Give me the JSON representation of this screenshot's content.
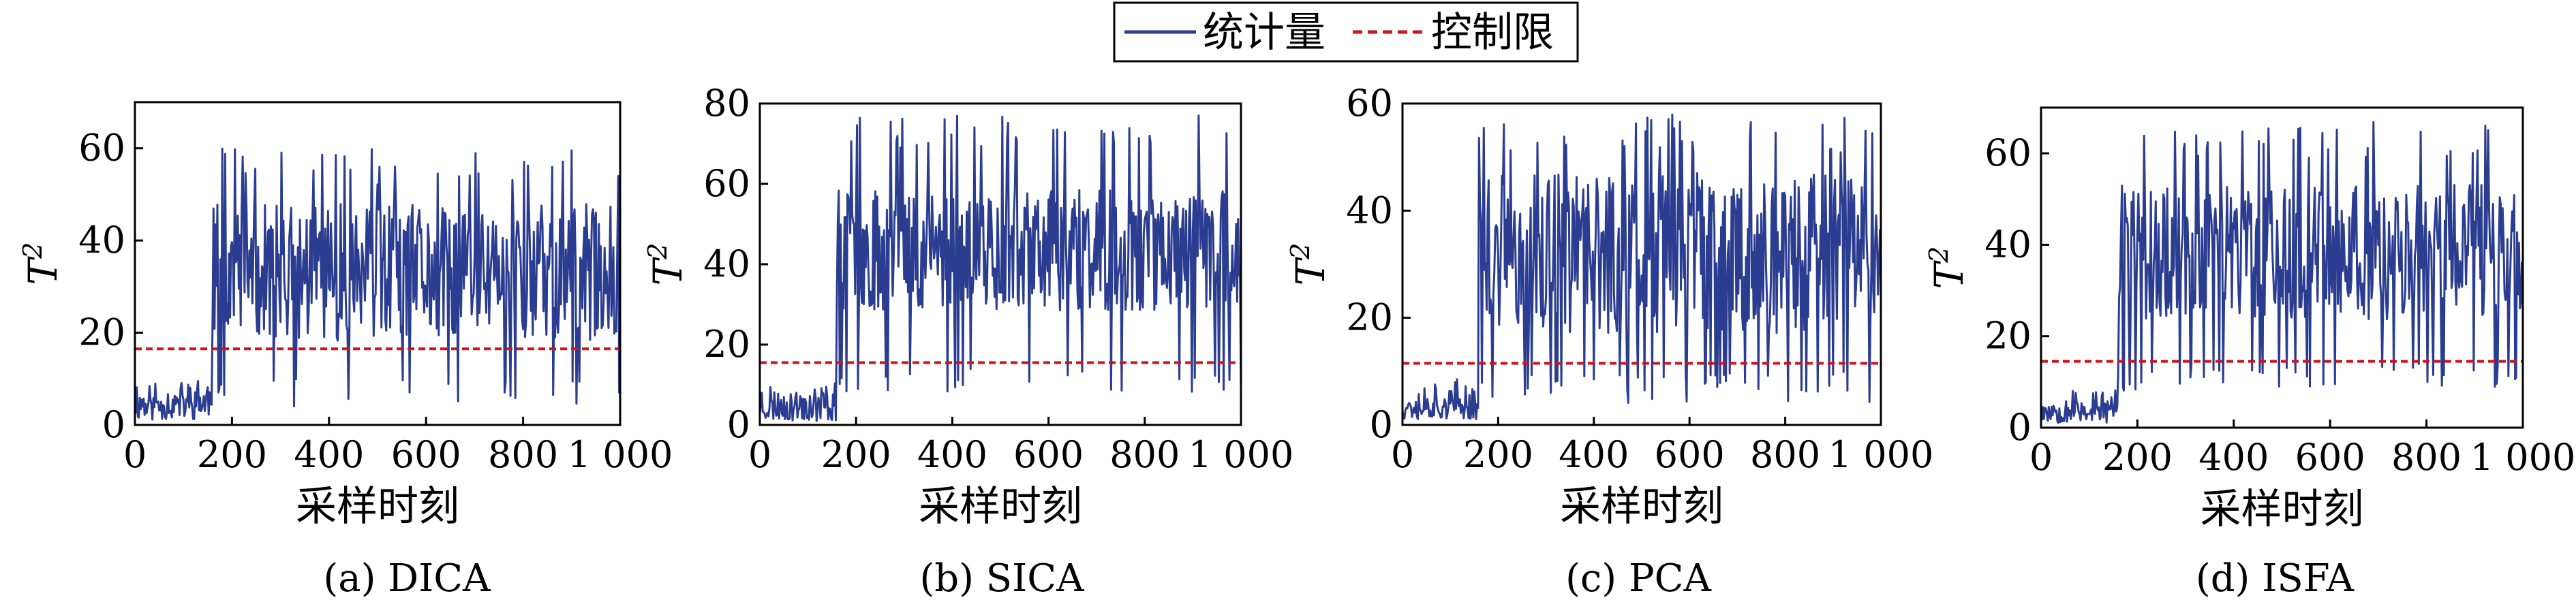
{
  "legend": {
    "statistic": "统计量",
    "limit": "控制限"
  },
  "colors": {
    "statistic": "#2b3d91",
    "limit": "#d0121b",
    "axis": "#000000"
  },
  "chart_data": [
    {
      "type": "line",
      "caption": "(a) DICA",
      "xlabel": "采样时刻",
      "ylabel": "T",
      "ylabel_sup": "2",
      "xlim": [
        0,
        1000
      ],
      "ylim": [
        0,
        70
      ],
      "yticks": [
        0,
        20,
        40,
        60
      ],
      "xticks": [
        0,
        200,
        400,
        600,
        800,
        1000
      ],
      "xtick_labels": [
        "0",
        "200",
        "400",
        "600",
        "800",
        "1 000"
      ],
      "control_limit": 16.5,
      "fault_start": 160,
      "normal_range": [
        1,
        12
      ],
      "fault_range": [
        4,
        60
      ],
      "series": [
        {
          "name": "统计量",
          "seed": 11
        }
      ]
    },
    {
      "type": "line",
      "caption": "(b) SICA",
      "xlabel": "采样时刻",
      "ylabel": "T",
      "ylabel_sup": "2",
      "xlim": [
        0,
        1000
      ],
      "ylim": [
        0,
        80
      ],
      "yticks": [
        0,
        20,
        40,
        60,
        80
      ],
      "xticks": [
        0,
        200,
        400,
        600,
        800,
        1000
      ],
      "xtick_labels": [
        "0",
        "200",
        "400",
        "600",
        "800",
        "1 000"
      ],
      "control_limit": 15.5,
      "fault_start": 160,
      "normal_range": [
        1,
        12
      ],
      "fault_range": [
        8,
        77
      ],
      "series": [
        {
          "name": "统计量",
          "seed": 23
        }
      ]
    },
    {
      "type": "line",
      "caption": "(c) PCA",
      "xlabel": "采样时刻",
      "ylabel": "T",
      "ylabel_sup": "2",
      "xlim": [
        0,
        1000
      ],
      "ylim": [
        0,
        60
      ],
      "yticks": [
        0,
        20,
        40,
        60
      ],
      "xticks": [
        0,
        200,
        400,
        600,
        800,
        1000
      ],
      "xtick_labels": [
        "0",
        "200",
        "400",
        "600",
        "800",
        "1 000"
      ],
      "control_limit": 11.5,
      "fault_start": 160,
      "normal_range": [
        1,
        9
      ],
      "fault_range": [
        4,
        58
      ],
      "series": [
        {
          "name": "统计量",
          "seed": 37
        }
      ]
    },
    {
      "type": "line",
      "caption": "(d) ISFA",
      "xlabel": "采样时刻",
      "ylabel": "T",
      "ylabel_sup": "2",
      "xlim": [
        0,
        1000
      ],
      "ylim": [
        0,
        70
      ],
      "yticks": [
        0,
        20,
        40,
        60
      ],
      "xticks": [
        0,
        200,
        400,
        600,
        800,
        1000
      ],
      "xtick_labels": [
        "0",
        "200",
        "400",
        "600",
        "800",
        "1 000"
      ],
      "control_limit": 14.5,
      "fault_start": 160,
      "normal_range": [
        1,
        10
      ],
      "fault_range": [
        8,
        67
      ],
      "series": [
        {
          "name": "统计量",
          "seed": 53
        }
      ]
    }
  ]
}
